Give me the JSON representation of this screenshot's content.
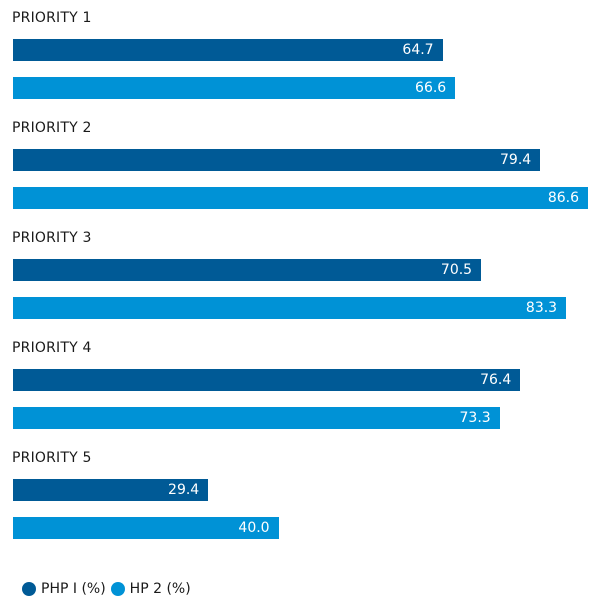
{
  "chart_data": {
    "type": "bar",
    "orientation": "horizontal",
    "categories": [
      "PRIORITY 1",
      "PRIORITY 2",
      "PRIORITY 3",
      "PRIORITY 4",
      "PRIORITY 5"
    ],
    "series": [
      {
        "name": "PHP I (%)",
        "color": "#005a96",
        "values": [
          64.7,
          79.4,
          70.5,
          76.4,
          29.4
        ]
      },
      {
        "name": "HP 2 (%)",
        "color": "#0092d6",
        "values": [
          66.6,
          86.6,
          83.3,
          73.3,
          40.0
        ]
      }
    ],
    "xlim": [
      0,
      86.6
    ],
    "grid": false,
    "legend_position": "bottom-left",
    "data_labels": true
  }
}
